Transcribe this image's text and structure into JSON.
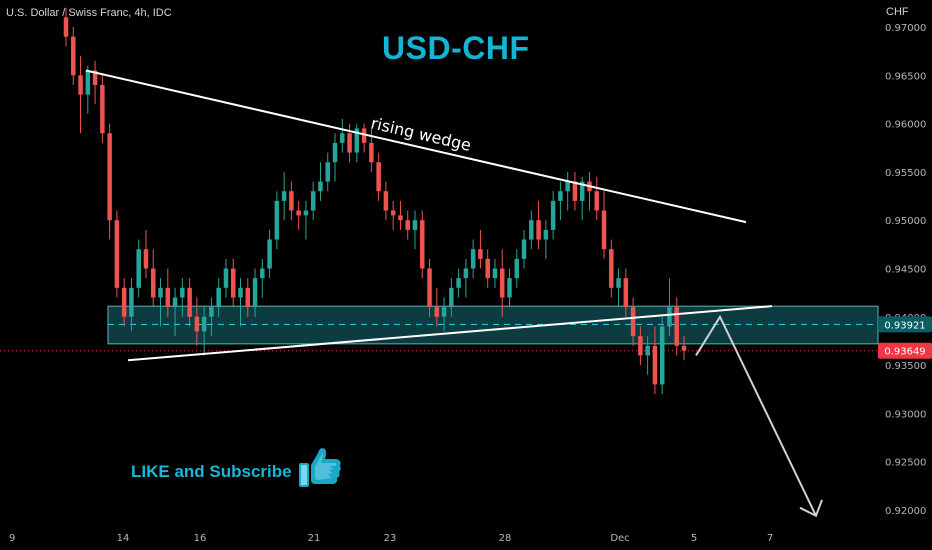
{
  "header": {
    "symbol": "U.S. Dollar / Swiss Franc, 4h, IDC",
    "currency": "CHF"
  },
  "annotations": {
    "title": "USD-CHF",
    "wedge_label": "rising wedge",
    "cta": "LIKE and Subscribe",
    "cta_icon": "thumbs-up-icon"
  },
  "colors": {
    "bull": "#26a69a",
    "bear": "#ef5350",
    "accent": "#13b5d6",
    "zone_fill": "#0c3b40",
    "current_price_bg": "#f23645",
    "level_bg": "#0b5d63"
  },
  "chart_data": {
    "type": "candlestick",
    "title": "USD-CHF",
    "ylim": [
      0.919,
      0.9715
    ],
    "y_ticks": [
      "0.97000",
      "0.96500",
      "0.96000",
      "0.95500",
      "0.95000",
      "0.94500",
      "0.94000",
      "0.93500",
      "0.93000",
      "0.92500",
      "0.92000"
    ],
    "x_ticks": [
      "9",
      "14",
      "16",
      "21",
      "23",
      "28",
      "Dec",
      "5",
      "7"
    ],
    "price_labels": [
      {
        "label": "0.93921",
        "value": 0.93921,
        "kind": "level"
      },
      {
        "label": "0.93649",
        "value": 0.93649,
        "kind": "last"
      }
    ],
    "resistance_line": [
      [
        0.9655,
        0.9498
      ]
    ],
    "support_line": [
      [
        0.9355,
        0.9411
      ]
    ],
    "zone": [
      0.9372,
      0.9411
    ],
    "projection": [
      0.936,
      0.94,
      0.9194
    ],
    "candles": [
      [
        0.971,
        0.972,
        0.968,
        0.969
      ],
      [
        0.969,
        0.97,
        0.964,
        0.965
      ],
      [
        0.965,
        0.967,
        0.959,
        0.963
      ],
      [
        0.963,
        0.966,
        0.961,
        0.9655
      ],
      [
        0.9655,
        0.9665,
        0.962,
        0.964
      ],
      [
        0.964,
        0.965,
        0.958,
        0.959
      ],
      [
        0.959,
        0.96,
        0.948,
        0.95
      ],
      [
        0.95,
        0.951,
        0.942,
        0.943
      ],
      [
        0.943,
        0.944,
        0.939,
        0.94
      ],
      [
        0.94,
        0.944,
        0.9385,
        0.943
      ],
      [
        0.943,
        0.948,
        0.942,
        0.947
      ],
      [
        0.947,
        0.949,
        0.944,
        0.945
      ],
      [
        0.945,
        0.947,
        0.941,
        0.942
      ],
      [
        0.942,
        0.944,
        0.939,
        0.943
      ],
      [
        0.943,
        0.945,
        0.94,
        0.941
      ],
      [
        0.941,
        0.943,
        0.938,
        0.942
      ],
      [
        0.942,
        0.944,
        0.94,
        0.943
      ],
      [
        0.943,
        0.944,
        0.939,
        0.94
      ],
      [
        0.94,
        0.942,
        0.937,
        0.9385
      ],
      [
        0.9385,
        0.941,
        0.936,
        0.94
      ],
      [
        0.94,
        0.942,
        0.938,
        0.941
      ],
      [
        0.941,
        0.944,
        0.94,
        0.943
      ],
      [
        0.943,
        0.946,
        0.942,
        0.945
      ],
      [
        0.945,
        0.946,
        0.941,
        0.942
      ],
      [
        0.942,
        0.944,
        0.939,
        0.943
      ],
      [
        0.943,
        0.944,
        0.94,
        0.941
      ],
      [
        0.941,
        0.945,
        0.94,
        0.944
      ],
      [
        0.944,
        0.946,
        0.942,
        0.945
      ],
      [
        0.945,
        0.949,
        0.944,
        0.948
      ],
      [
        0.948,
        0.953,
        0.947,
        0.952
      ],
      [
        0.952,
        0.955,
        0.95,
        0.953
      ],
      [
        0.953,
        0.954,
        0.95,
        0.951
      ],
      [
        0.951,
        0.952,
        0.949,
        0.9505
      ],
      [
        0.9505,
        0.952,
        0.948,
        0.951
      ],
      [
        0.951,
        0.954,
        0.95,
        0.953
      ],
      [
        0.953,
        0.956,
        0.952,
        0.954
      ],
      [
        0.954,
        0.957,
        0.953,
        0.956
      ],
      [
        0.956,
        0.959,
        0.954,
        0.958
      ],
      [
        0.958,
        0.9605,
        0.957,
        0.959
      ],
      [
        0.959,
        0.96,
        0.956,
        0.957
      ],
      [
        0.957,
        0.96,
        0.956,
        0.9595
      ],
      [
        0.9595,
        0.96,
        0.957,
        0.958
      ],
      [
        0.958,
        0.9595,
        0.955,
        0.956
      ],
      [
        0.956,
        0.957,
        0.952,
        0.953
      ],
      [
        0.953,
        0.954,
        0.95,
        0.951
      ],
      [
        0.951,
        0.952,
        0.949,
        0.9505
      ],
      [
        0.9505,
        0.952,
        0.949,
        0.95
      ],
      [
        0.95,
        0.951,
        0.948,
        0.949
      ],
      [
        0.949,
        0.951,
        0.947,
        0.95
      ],
      [
        0.95,
        0.951,
        0.944,
        0.945
      ],
      [
        0.945,
        0.946,
        0.94,
        0.941
      ],
      [
        0.941,
        0.943,
        0.939,
        0.94
      ],
      [
        0.94,
        0.942,
        0.9385,
        0.941
      ],
      [
        0.941,
        0.944,
        0.94,
        0.943
      ],
      [
        0.943,
        0.945,
        0.942,
        0.944
      ],
      [
        0.944,
        0.946,
        0.942,
        0.945
      ],
      [
        0.945,
        0.948,
        0.944,
        0.947
      ],
      [
        0.947,
        0.949,
        0.945,
        0.946
      ],
      [
        0.946,
        0.947,
        0.943,
        0.944
      ],
      [
        0.944,
        0.946,
        0.943,
        0.945
      ],
      [
        0.945,
        0.947,
        0.94,
        0.942
      ],
      [
        0.942,
        0.945,
        0.941,
        0.944
      ],
      [
        0.944,
        0.947,
        0.943,
        0.946
      ],
      [
        0.946,
        0.949,
        0.945,
        0.948
      ],
      [
        0.948,
        0.951,
        0.947,
        0.95
      ],
      [
        0.95,
        0.952,
        0.947,
        0.948
      ],
      [
        0.948,
        0.95,
        0.946,
        0.949
      ],
      [
        0.949,
        0.953,
        0.948,
        0.952
      ],
      [
        0.952,
        0.954,
        0.95,
        0.953
      ],
      [
        0.953,
        0.955,
        0.951,
        0.954
      ],
      [
        0.954,
        0.955,
        0.951,
        0.952
      ],
      [
        0.952,
        0.9545,
        0.95,
        0.954
      ],
      [
        0.954,
        0.955,
        0.951,
        0.953
      ],
      [
        0.953,
        0.9545,
        0.95,
        0.951
      ],
      [
        0.951,
        0.953,
        0.946,
        0.947
      ],
      [
        0.947,
        0.948,
        0.942,
        0.943
      ],
      [
        0.943,
        0.945,
        0.941,
        0.944
      ],
      [
        0.944,
        0.945,
        0.94,
        0.941
      ],
      [
        0.941,
        0.942,
        0.937,
        0.938
      ],
      [
        0.938,
        0.939,
        0.935,
        0.936
      ],
      [
        0.936,
        0.938,
        0.934,
        0.937
      ],
      [
        0.937,
        0.939,
        0.932,
        0.933
      ],
      [
        0.933,
        0.94,
        0.932,
        0.939
      ],
      [
        0.939,
        0.944,
        0.938,
        0.941
      ],
      [
        0.941,
        0.942,
        0.936,
        0.937
      ],
      [
        0.937,
        0.938,
        0.9355,
        0.9365
      ]
    ]
  }
}
